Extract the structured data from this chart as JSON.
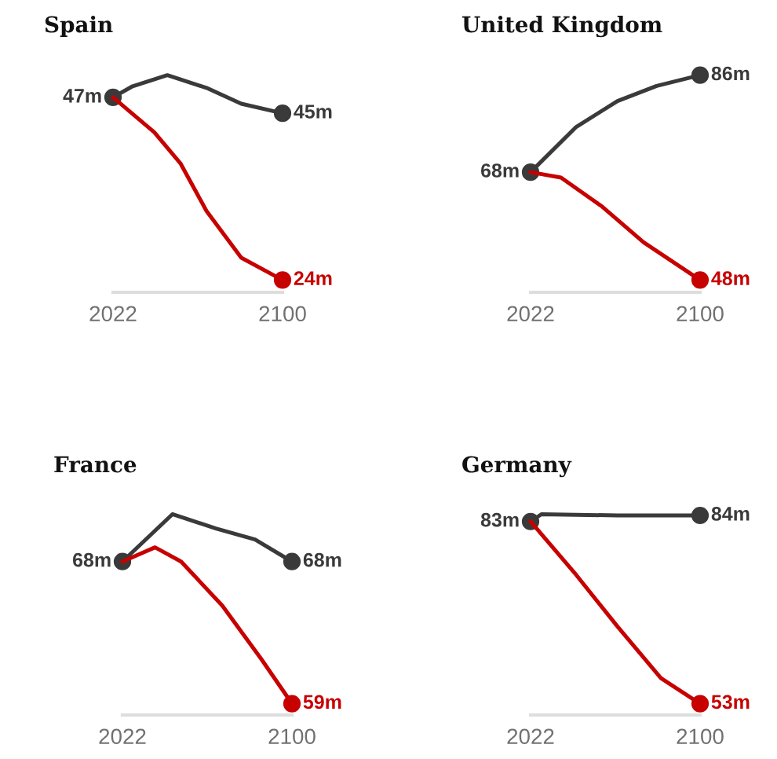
{
  "chart_data": [
    {
      "type": "line",
      "title": "Spain",
      "x": [
        2022,
        2031,
        2047,
        2065,
        2081,
        2100
      ],
      "xlim": [
        2022,
        2100
      ],
      "xticks": [
        2022,
        2100
      ],
      "tick_labels": "x",
      "series": [
        {
          "color": "#3a3a3a",
          "values": [
            47,
            48.4,
            49.8,
            48.2,
            46.2,
            45
          ],
          "value_labels": [
            "47m",
            null,
            null,
            null,
            null,
            "45m"
          ]
        },
        {
          "color": "#c70000",
          "x": [
            2022,
            2041,
            2053,
            2065,
            2081,
            2100
          ],
          "values": [
            47,
            42.6,
            38.7,
            32.7,
            26.8,
            24
          ],
          "value_labels": [
            null,
            null,
            null,
            null,
            null,
            "24m"
          ]
        }
      ]
    },
    {
      "type": "line",
      "title": "United Kingdom",
      "x": [
        2022,
        2043,
        2062,
        2080,
        2100
      ],
      "xlim": [
        2022,
        2100
      ],
      "xticks": [
        2022,
        2100
      ],
      "tick_labels": "x",
      "series": [
        {
          "color": "#3a3a3a",
          "values": [
            68,
            76.4,
            81.2,
            84,
            86
          ],
          "value_labels": [
            "68m",
            null,
            null,
            null,
            "86m"
          ]
        },
        {
          "color": "#c70000",
          "x": [
            2022,
            2036,
            2055,
            2074,
            2100
          ],
          "values": [
            68,
            67,
            61.6,
            55,
            48
          ],
          "value_labels": [
            null,
            null,
            null,
            null,
            "48m"
          ]
        }
      ]
    },
    {
      "type": "line",
      "title": "France",
      "x": [
        2022,
        2045,
        2065,
        2083,
        2100
      ],
      "xlim": [
        2022,
        2100
      ],
      "xticks": [
        2022,
        2100
      ],
      "tick_labels": "x",
      "series": [
        {
          "color": "#3a3a3a",
          "values": [
            68,
            71.0,
            70.1,
            69.4,
            68
          ],
          "value_labels": [
            "68m",
            null,
            null,
            null,
            "68m"
          ]
        },
        {
          "color": "#c70000",
          "x": [
            2022,
            2037,
            2049,
            2068,
            2086,
            2100
          ],
          "values": [
            68,
            68.9,
            68,
            65.2,
            61.8,
            59
          ],
          "value_labels": [
            null,
            null,
            null,
            null,
            null,
            "59m"
          ]
        }
      ]
    },
    {
      "type": "line",
      "title": "Germany",
      "x": [
        2022,
        2027,
        2062,
        2100
      ],
      "xlim": [
        2022,
        2100
      ],
      "xticks": [
        2022,
        2100
      ],
      "tick_labels": "x",
      "series": [
        {
          "color": "#3a3a3a",
          "values": [
            83,
            84.2,
            84.0,
            84
          ],
          "value_labels": [
            "83m",
            null,
            null,
            "84m"
          ]
        },
        {
          "color": "#c70000",
          "x": [
            2022,
            2043,
            2062,
            2082,
            2100
          ],
          "values": [
            83,
            74.2,
            65.7,
            57.2,
            53
          ],
          "value_labels": [
            null,
            null,
            null,
            null,
            "53m"
          ]
        }
      ]
    }
  ]
}
